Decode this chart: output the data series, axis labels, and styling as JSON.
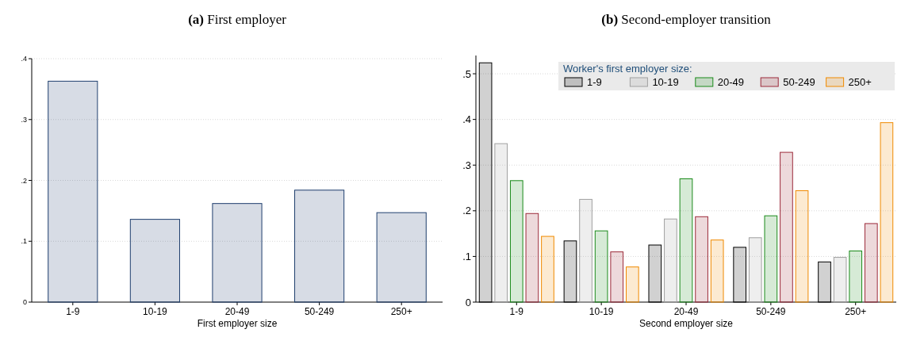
{
  "chart_data": [
    {
      "type": "bar",
      "title": "(a) First employer",
      "xlabel": "First employer size",
      "categories": [
        "1-9",
        "10-19",
        "20-49",
        "50-249",
        "250+"
      ],
      "series": [
        {
          "color": "#1f3f6e",
          "values": [
            0.363,
            0.136,
            0.162,
            0.184,
            0.147
          ]
        }
      ],
      "ylim": [
        0,
        0.4
      ],
      "yticks": [
        0,
        {
          "value": 0.1,
          "label": ".1"
        },
        {
          "value": 0.2,
          "label": ".2"
        },
        {
          "value": 0.3,
          "label": ".3"
        },
        {
          "value": 0.4,
          "label": ".4"
        }
      ],
      "grid": "y",
      "legend": false
    },
    {
      "type": "bar",
      "title": "(b) Second-employer transition",
      "xlabel": "Second employer size",
      "legend_title": "Worker's first employer size:",
      "categories": [
        "1-9",
        "10-19",
        "20-49",
        "50-249",
        "250+"
      ],
      "series": [
        {
          "name": "1-9",
          "color": "#000000",
          "values": [
            0.524,
            0.134,
            0.125,
            0.12,
            0.088
          ]
        },
        {
          "name": "10-19",
          "color": "#a0a0a0",
          "values": [
            0.347,
            0.225,
            0.182,
            0.141,
            0.098
          ]
        },
        {
          "name": "20-49",
          "color": "#1a8a1a",
          "values": [
            0.266,
            0.156,
            0.27,
            0.189,
            0.112
          ]
        },
        {
          "name": "50-249",
          "color": "#9c2a3a",
          "values": [
            0.194,
            0.11,
            0.187,
            0.328,
            0.172
          ]
        },
        {
          "name": "250+",
          "color": "#f08a00",
          "values": [
            0.144,
            0.077,
            0.136,
            0.244,
            0.393
          ]
        }
      ],
      "ylim": [
        0,
        0.54
      ],
      "yticks": [
        0,
        {
          "value": 0.1,
          "label": ".1"
        },
        {
          "value": 0.2,
          "label": ".2"
        },
        {
          "value": 0.3,
          "label": ".3"
        },
        {
          "value": 0.4,
          "label": ".4"
        },
        {
          "value": 0.5,
          "label": ".5"
        }
      ],
      "grid": "y",
      "legend": "top right"
    }
  ]
}
